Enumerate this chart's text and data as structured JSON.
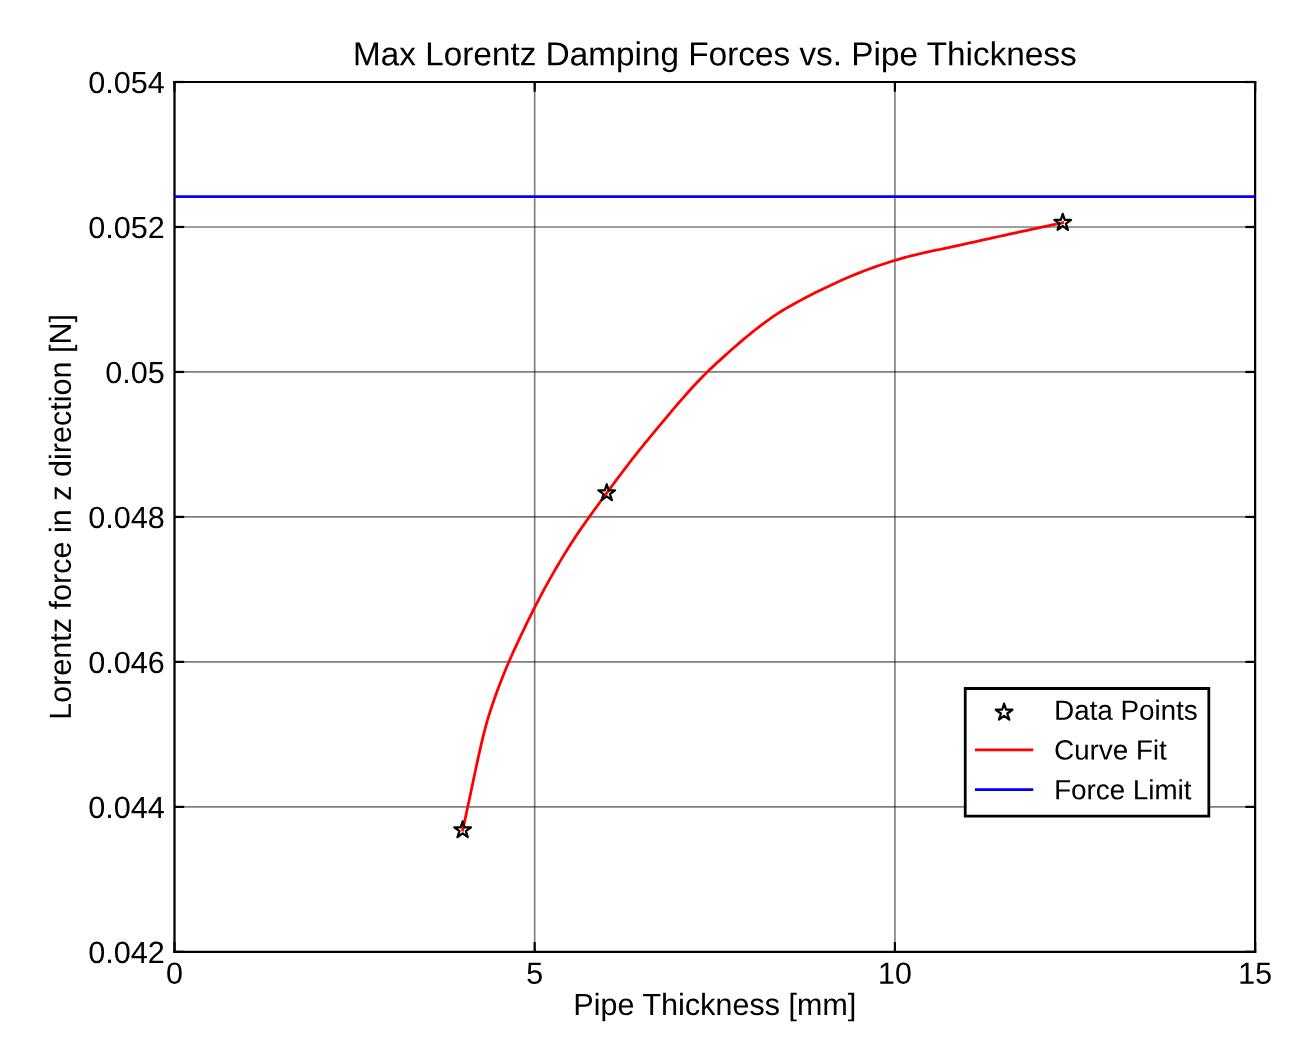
{
  "chart_data": {
    "type": "line",
    "title": "Max Lorentz Damping Forces vs. Pipe Thickness",
    "xlabel": "Pipe Thickness [mm]",
    "ylabel": "Lorentz force in z direction [N]",
    "xlim": [
      0,
      15
    ],
    "xticks": [
      0,
      5,
      10,
      15
    ],
    "ylim": [
      0.042,
      0.054
    ],
    "yticks": [
      0.042,
      0.044,
      0.046,
      0.048,
      0.05,
      0.052,
      0.054
    ],
    "grid": true,
    "legend": "bottom right",
    "series": [
      {
        "name": "Data Points",
        "type": "scatter",
        "marker": "star",
        "color": "#000000",
        "x": [
          4,
          6,
          12.33
        ],
        "values": [
          0.04368,
          0.04833,
          0.05206
        ]
      },
      {
        "name": "Curve Fit",
        "type": "line",
        "color": "#ff0000",
        "x": [
          4,
          4.37,
          4.855,
          5.44,
          6,
          6.6,
          7.47,
          8.53,
          10,
          10.95,
          12.33
        ],
        "values": [
          0.04368,
          0.04528,
          0.04646,
          0.04753,
          0.04833,
          0.0491,
          0.05007,
          0.0509,
          0.05154,
          0.05176,
          0.05206
        ]
      },
      {
        "name": "Force Limit",
        "color": "#0000ff",
        "x": [
          0,
          15
        ],
        "values": [
          0.05242,
          0.05242
        ]
      }
    ]
  }
}
